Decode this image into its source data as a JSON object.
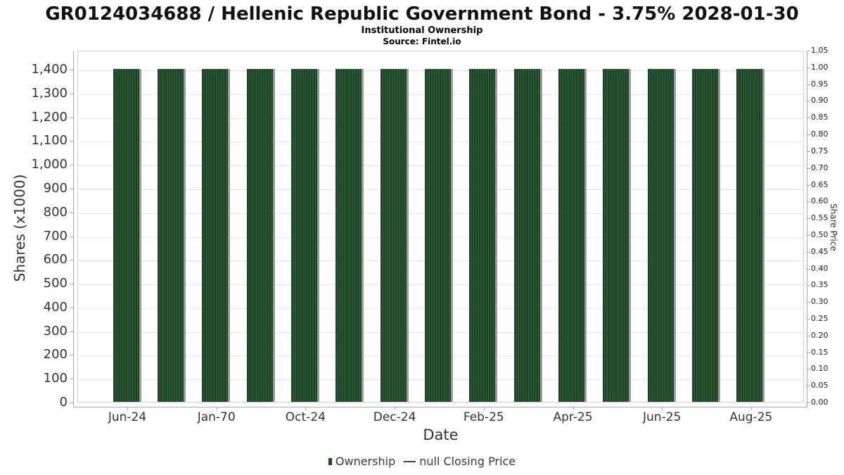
{
  "header": {
    "title": "GR0124034688 / Hellenic Republic Government Bond - 3.75% 2028-01-30",
    "subtitle": "Institutional Ownership",
    "source": "Source: Fintel.io"
  },
  "chart_data": {
    "type": "bar",
    "title": "GR0124034688 / Hellenic Republic Government Bond - 3.75% 2028-01-30",
    "subtitle": "Institutional Ownership",
    "source": "Source: Fintel.io",
    "xlabel": "Date",
    "ylabel_left": "Shares (x1000)",
    "ylabel_right": "Share Price",
    "bar_count": 15,
    "x_tick_labels": [
      "Jun-24",
      "Jan-70",
      "Oct-24",
      "Dec-24",
      "Feb-25",
      "Apr-25",
      "Jun-25",
      "Aug-25"
    ],
    "x_tick_bar_indices": [
      0,
      2,
      4,
      6,
      8,
      10,
      12,
      14
    ],
    "series": [
      {
        "name": "Ownership",
        "type": "bar",
        "unit": "shares x1000",
        "values": [
          1400,
          1400,
          1400,
          1400,
          1400,
          1400,
          1400,
          1400,
          1400,
          1400,
          1400,
          1400,
          1400,
          1400,
          1400
        ]
      },
      {
        "name": "null Closing Price",
        "type": "line",
        "values": []
      }
    ],
    "ylim_left": [
      0,
      1480
    ],
    "yticks_left": [
      0,
      100,
      200,
      300,
      400,
      500,
      600,
      700,
      800,
      900,
      1000,
      1100,
      1200,
      1300,
      1400
    ],
    "ylim_right": [
      0,
      1.05
    ],
    "yticks_right": [
      0.0,
      0.05,
      0.1,
      0.15,
      0.2,
      0.25,
      0.3,
      0.35,
      0.4,
      0.45,
      0.5,
      0.55,
      0.6,
      0.65,
      0.7,
      0.75,
      0.8,
      0.85,
      0.9,
      0.95,
      1.0,
      1.05
    ],
    "grid": true,
    "legend_position": "bottom"
  },
  "colors": {
    "bar_dark": "#1d4226",
    "bar_stripe": "#356b3c",
    "bar_shadow": "#9b9b9b",
    "gridline": "#e3e3e3",
    "axis": "#a6a6a6",
    "plot_border": "#cfcfcf",
    "text": "#333333",
    "legend_line": "#3f3f3f"
  }
}
